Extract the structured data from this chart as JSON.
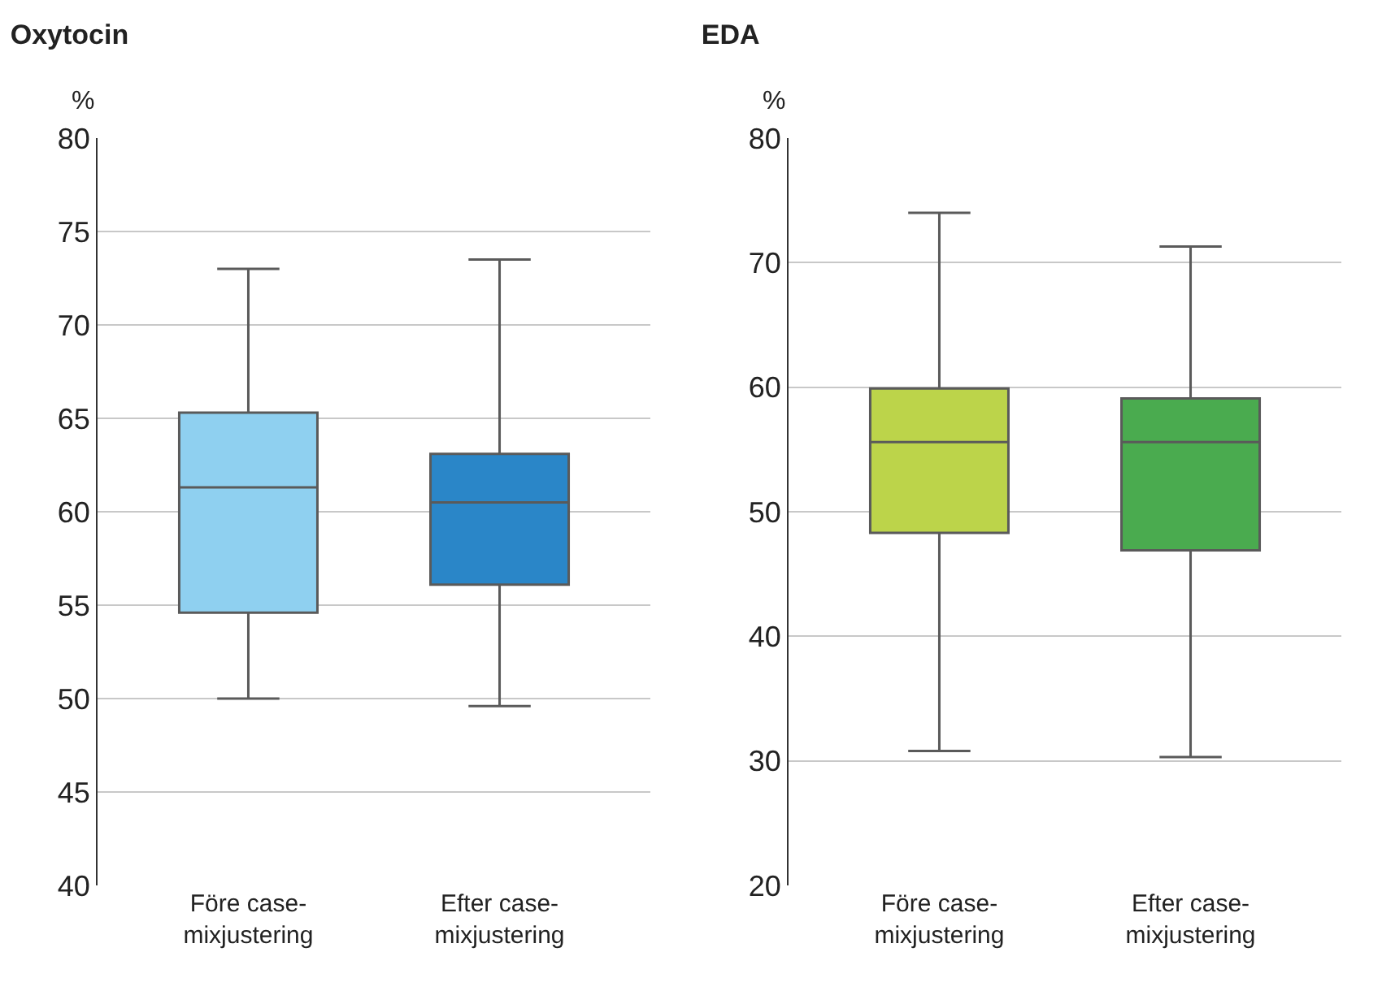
{
  "chart_data": [
    {
      "type": "box",
      "title": "Oxytocin",
      "ylabel": "%",
      "categories": [
        "Före case-mixjustering",
        "Efter case-mixjustering"
      ],
      "colors": [
        "#8fd0f0",
        "#2a86c8"
      ],
      "boxes": [
        {
          "low": 50,
          "q1": 54.6,
          "median": 61.3,
          "q3": 65.3,
          "high": 73
        },
        {
          "low": 49.6,
          "q1": 56.1,
          "median": 60.5,
          "q3": 63.1,
          "high": 73.5
        }
      ],
      "ylim": [
        40,
        80
      ],
      "yticks": [
        40,
        45,
        50,
        55,
        60,
        65,
        70,
        75,
        80
      ],
      "grid": "y"
    },
    {
      "type": "box",
      "title": "EDA",
      "ylabel": "%",
      "categories": [
        "Före case-mixjustering",
        "Efter case-mixjustering"
      ],
      "colors": [
        "#bcd44a",
        "#4aab4f"
      ],
      "boxes": [
        {
          "low": 30.8,
          "q1": 48.3,
          "median": 55.6,
          "q3": 59.9,
          "high": 74
        },
        {
          "low": 30.3,
          "q1": 46.9,
          "median": 55.6,
          "q3": 59.1,
          "high": 71.3
        }
      ],
      "ylim": [
        20,
        80
      ],
      "yticks": [
        20,
        30,
        40,
        50,
        60,
        70,
        80
      ],
      "grid": "y"
    }
  ]
}
